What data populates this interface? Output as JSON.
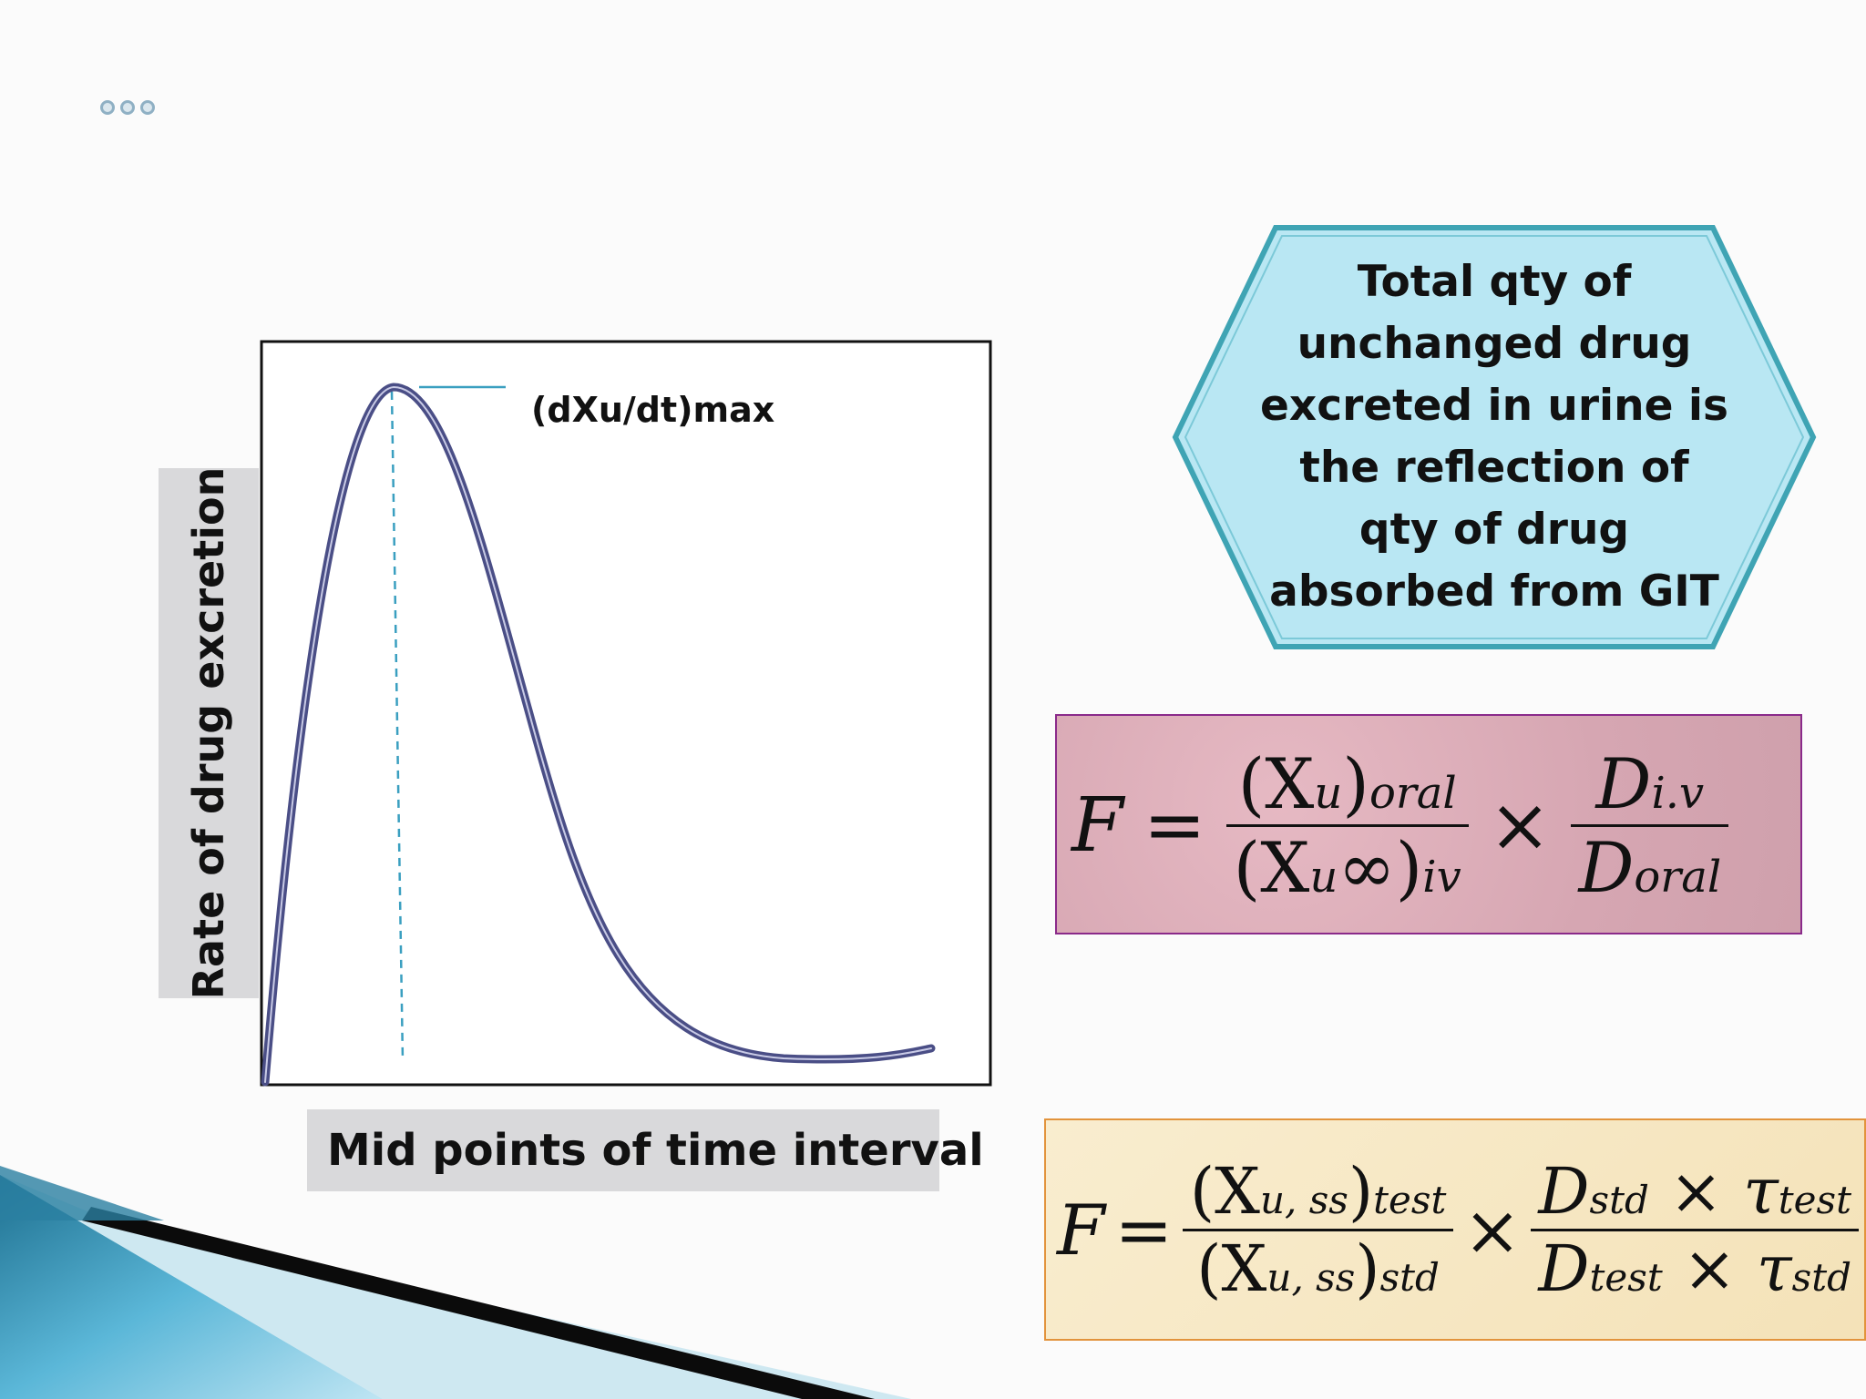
{
  "slide": {
    "title_marker": "ooo"
  },
  "chart": {
    "ylabel": "Rate of drug excretion",
    "xlabel": "Mid points of time interval",
    "peak_label": "(dXu/dt)max"
  },
  "chart_data": {
    "type": "line",
    "title": "",
    "xlabel": "Mid points of time interval",
    "ylabel": "Rate of drug excretion",
    "annotations": [
      "(dXu/dt)max"
    ],
    "grid": false,
    "series": [
      {
        "shape": "rise-to-peak-then-decay",
        "x": [
          0,
          0.5,
          1,
          1.5,
          2,
          3,
          4,
          5,
          6,
          8,
          10
        ],
        "y": [
          0,
          0.78,
          0.98,
          1.0,
          0.9,
          0.55,
          0.28,
          0.12,
          0.05,
          0.02,
          0.04
        ]
      }
    ]
  },
  "callout": {
    "lines": [
      "Total qty of",
      "unchanged drug",
      "excreted in urine is",
      "the reflection of",
      "qty of drug",
      "absorbed from GIT"
    ],
    "fill_color": "#b9e7f3",
    "border_color": "#3fa4b4"
  },
  "formula1": {
    "lhs": "F",
    "eq": "=",
    "num_main": "(X",
    "num_sub": "u",
    "num_close": ")",
    "num_tail": "oral",
    "den_main": "(X",
    "den_sub": "u",
    "den_inf": "∞",
    "den_close": ")",
    "den_tail": "iv",
    "times": "×",
    "r_num": "D",
    "r_num_sub": "i.v",
    "r_den": "D",
    "r_den_sub": "oral"
  },
  "formula2": {
    "lhs": "F",
    "eq": "=",
    "num_main": "(X",
    "num_sub": "u, ss",
    "num_close": ")",
    "num_tail": "test",
    "den_main": "(X",
    "den_sub": "u, ss",
    "den_close": ")",
    "den_tail": "std",
    "times": "×",
    "r_num_D": "D",
    "r_num_Dsub": "std",
    "r_num_times": "×",
    "r_num_tau": "τ",
    "r_num_tausub": "test",
    "r_den_D": "D",
    "r_den_Dsub": "test",
    "r_den_times": "×",
    "r_den_tau": "τ",
    "r_den_tausub": "std"
  }
}
